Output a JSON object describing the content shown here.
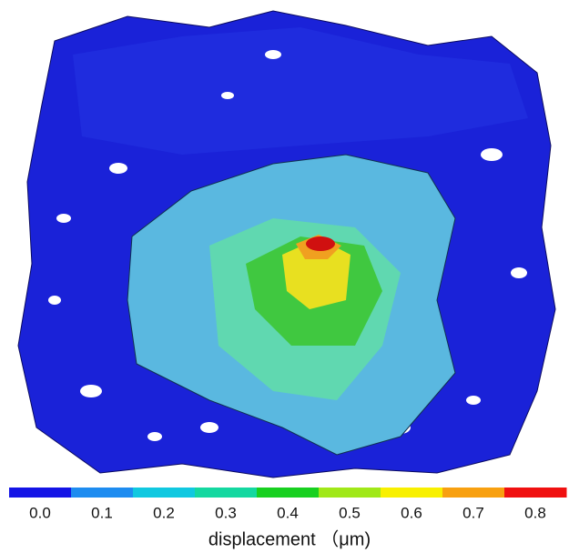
{
  "colorbar": {
    "ticks": [
      {
        "value": 0,
        "label": "0.0"
      },
      {
        "value": 0.1,
        "label": "0.1"
      },
      {
        "value": 0.2,
        "label": "0.2"
      },
      {
        "value": 0.3,
        "label": "0.3"
      },
      {
        "value": 0.4,
        "label": "0.4"
      },
      {
        "value": 0.5,
        "label": "0.5"
      },
      {
        "value": 0.6,
        "label": "0.6"
      },
      {
        "value": 0.7,
        "label": "0.7"
      },
      {
        "value": 0.8,
        "label": "0.8"
      }
    ],
    "colors": [
      "#1414e6",
      "#1e8cf0",
      "#10c8e0",
      "#14d8a0",
      "#18d020",
      "#a0e818",
      "#f8f000",
      "#f8a010",
      "#f01010"
    ],
    "label": "displacement （μm)"
  }
}
